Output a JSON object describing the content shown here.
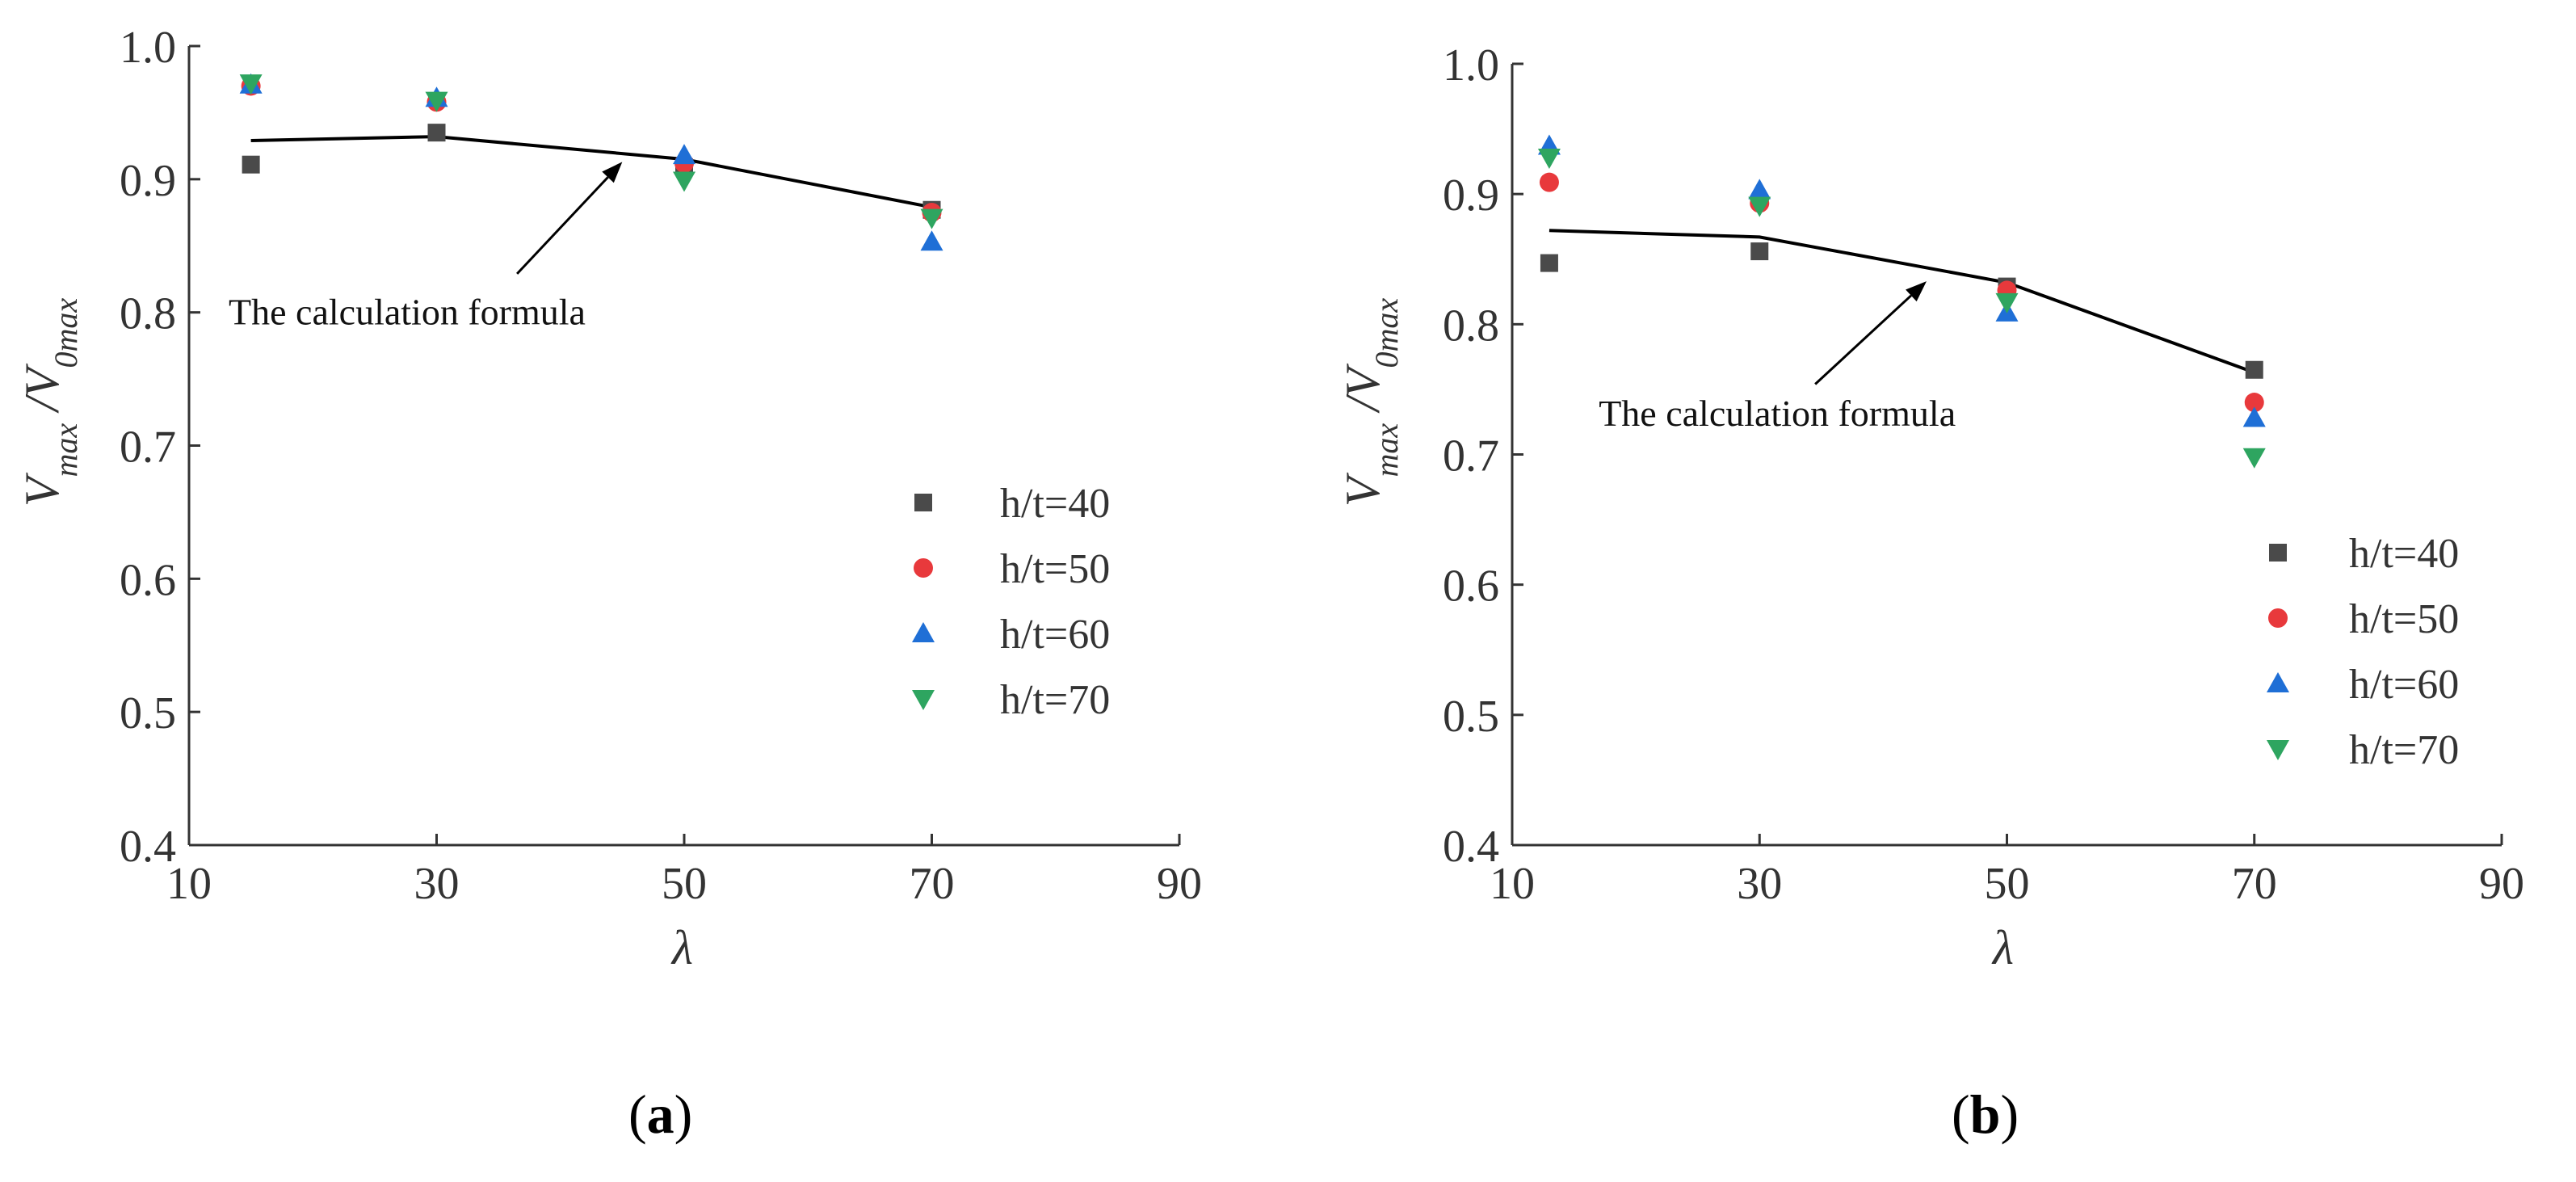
{
  "colors": {
    "h_t_40": "#4a4a4a",
    "h_t_50": "#e8393c",
    "h_t_60": "#1f6fd6",
    "h_t_70": "#2ea560",
    "formula_line": "#000000",
    "axis": "#333333"
  },
  "chart_data": [
    {
      "type": "scatter",
      "panel_caption": "a",
      "xlabel": "λ",
      "ylabel_main": "V",
      "ylabel_sub1": "max",
      "ylabel_slash": " /V",
      "ylabel_sub2": "0max",
      "xlim": [
        10,
        90
      ],
      "ylim": [
        0.4,
        1.0
      ],
      "x_ticks": [
        10,
        30,
        50,
        70,
        90
      ],
      "x_tick_labels": [
        "10",
        "30",
        "50",
        "70",
        "90"
      ],
      "y_ticks": [
        0.4,
        0.5,
        0.6,
        0.7,
        0.8,
        0.9,
        1.0
      ],
      "y_tick_labels": [
        "0.4",
        "0.5",
        "0.6",
        "0.7",
        "0.8",
        "0.9",
        "1.0"
      ],
      "legend_position": "lower-right",
      "series": [
        {
          "name": "h/t=40",
          "marker": "square",
          "color": "#4a4a4a",
          "x": [
            15,
            30,
            50,
            70
          ],
          "y": [
            0.911,
            0.935,
            0.909,
            0.877
          ]
        },
        {
          "name": "h/t=50",
          "marker": "circle",
          "color": "#e8393c",
          "x": [
            15,
            30,
            50,
            70
          ],
          "y": [
            0.97,
            0.958,
            0.912,
            0.875
          ]
        },
        {
          "name": "h/t=60",
          "marker": "triangle-up",
          "color": "#1f6fd6",
          "x": [
            15,
            30,
            50,
            70
          ],
          "y": [
            0.971,
            0.961,
            0.918,
            0.853
          ]
        },
        {
          "name": "h/t=70",
          "marker": "triangle-down",
          "color": "#2ea560",
          "x": [
            15,
            30,
            50,
            70
          ],
          "y": [
            0.972,
            0.959,
            0.899,
            0.871
          ]
        }
      ],
      "formula_line": {
        "x": [
          15,
          30,
          50,
          70
        ],
        "y": [
          0.929,
          0.932,
          0.915,
          0.879
        ]
      },
      "annotation": {
        "text": "The calculation formula",
        "arrow_tip": [
          45,
          0.913
        ],
        "arrow_tail": [
          36.5,
          0.829
        ],
        "text_anchor": [
          13.2,
          0.791
        ]
      }
    },
    {
      "type": "scatter",
      "panel_caption": "b",
      "xlabel": "λ",
      "ylabel_main": "V",
      "ylabel_sub1": "max",
      "ylabel_slash": " /V",
      "ylabel_sub2": "0max",
      "xlim": [
        10,
        90
      ],
      "ylim": [
        0.4,
        1.0
      ],
      "x_ticks": [
        10,
        30,
        50,
        70,
        90
      ],
      "x_tick_labels": [
        "10",
        "30",
        "50",
        "70",
        "90"
      ],
      "y_ticks": [
        0.4,
        0.5,
        0.6,
        0.7,
        0.8,
        0.9,
        1.0
      ],
      "y_tick_labels": [
        "0.4",
        "0.5",
        "0.6",
        "0.7",
        "0.8",
        "0.9",
        "1.0"
      ],
      "legend_position": "lower-right",
      "series": [
        {
          "name": "h/t=40",
          "marker": "square",
          "color": "#4a4a4a",
          "x": [
            13,
            30,
            50,
            70
          ],
          "y": [
            0.847,
            0.856,
            0.829,
            0.765
          ]
        },
        {
          "name": "h/t=50",
          "marker": "circle",
          "color": "#e8393c",
          "x": [
            13,
            30,
            50,
            70
          ],
          "y": [
            0.909,
            0.893,
            0.826,
            0.74
          ]
        },
        {
          "name": "h/t=60",
          "marker": "triangle-up",
          "color": "#1f6fd6",
          "x": [
            13,
            30,
            50,
            70
          ],
          "y": [
            0.937,
            0.903,
            0.809,
            0.728
          ]
        },
        {
          "name": "h/t=70",
          "marker": "triangle-down",
          "color": "#2ea560",
          "x": [
            13,
            30,
            50,
            70
          ],
          "y": [
            0.928,
            0.891,
            0.817,
            0.698
          ]
        }
      ],
      "formula_line": {
        "x": [
          13,
          30,
          50,
          70
        ],
        "y": [
          0.872,
          0.867,
          0.832,
          0.763
        ]
      },
      "annotation": {
        "text": "The calculation formula",
        "arrow_tip": [
          43.5,
          0.833
        ],
        "arrow_tail": [
          34.5,
          0.754
        ],
        "text_anchor": [
          17,
          0.722
        ]
      }
    }
  ]
}
